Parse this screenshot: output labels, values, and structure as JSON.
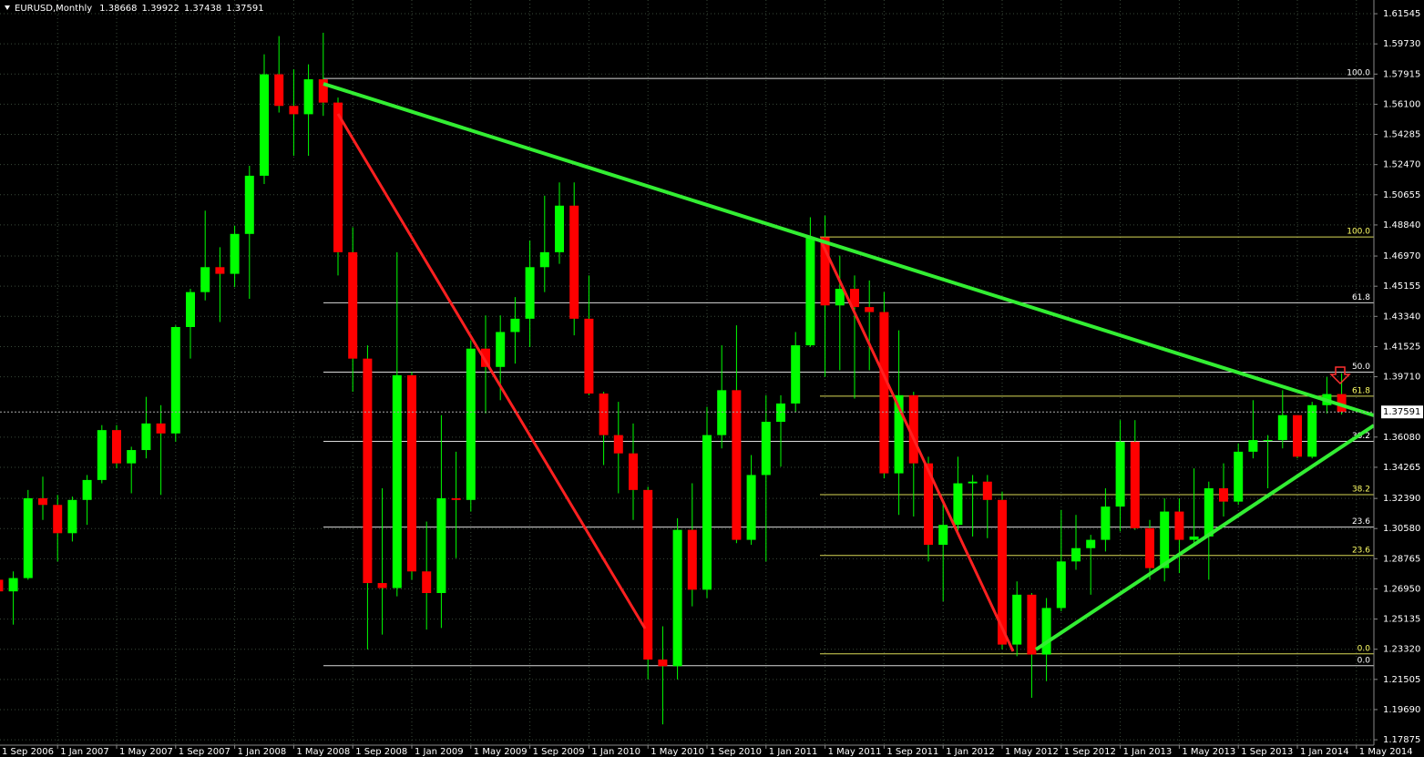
{
  "chart_data": {
    "type": "candlestick",
    "title": "EURUSD,Monthly",
    "categories": [
      "1 Sep 2006",
      null,
      null,
      null,
      "1 Jan 2007",
      null,
      null,
      null,
      "1 May 2007",
      null,
      null,
      null,
      "1 Sep 2007",
      null,
      null,
      null,
      "1 Jan 2008",
      null,
      null,
      null,
      "1 May 2008",
      null,
      null,
      null,
      "1 Sep 2008",
      null,
      null,
      null,
      "1 Jan 2009",
      null,
      null,
      null,
      "1 May 2009",
      null,
      null,
      null,
      "1 Sep 2009",
      null,
      null,
      null,
      "1 Jan 2010",
      null,
      null,
      null,
      "1 May 2010",
      null,
      null,
      null,
      "1 Sep 2010",
      null,
      null,
      null,
      "1 Jan 2011",
      null,
      null,
      null,
      "1 May 2011",
      null,
      null,
      null,
      "1 Sep 2011",
      null,
      null,
      null,
      "1 Jan 2012",
      null,
      null,
      null,
      "1 May 2012",
      null,
      null,
      null,
      "1 Sep 2012",
      null,
      null,
      null,
      "1 Jan 2013",
      null,
      null,
      null,
      "1 May 2013",
      null,
      null,
      null,
      "1 Sep 2013",
      null,
      null,
      null,
      "1 Jan 2014",
      null,
      null,
      null,
      "1 May 2014"
    ],
    "open": [
      1.275,
      1.268,
      1.276,
      1.324,
      1.32,
      1.303,
      1.323,
      1.335,
      1.365,
      1.345,
      1.353,
      1.369,
      1.363,
      1.427,
      1.448,
      1.463,
      1.459,
      1.483,
      1.518,
      1.579,
      1.56,
      1.555,
      1.576,
      1.562,
      1.472,
      1.408,
      1.273,
      1.27,
      1.398,
      1.28,
      1.267,
      1.324,
      1.323,
      1.414,
      1.403,
      1.424,
      1.432,
      1.463,
      1.472,
      1.5,
      1.432,
      1.387,
      1.362,
      1.351,
      1.329,
      1.227,
      1.223,
      1.305,
      1.269,
      1.362,
      1.389,
      1.299,
      1.338,
      1.37,
      1.381,
      1.416,
      1.481,
      1.44,
      1.45,
      1.439,
      1.436,
      1.339,
      1.386,
      1.345,
      1.296,
      1.308,
      1.333,
      1.334,
      1.323,
      1.236,
      1.266,
      1.23,
      1.258,
      1.286,
      1.294,
      1.299,
      1.319,
      1.358,
      1.306,
      1.282,
      1.316,
      1.299,
      1.301,
      1.33,
      1.322,
      1.352,
      1.359,
      1.359,
      1.374,
      1.349,
      1.38,
      1.38668,
      null
    ],
    "high": [
      1.284,
      1.28,
      1.329,
      1.337,
      1.326,
      1.325,
      1.338,
      1.368,
      1.368,
      1.355,
      1.385,
      1.38,
      1.428,
      1.45,
      1.497,
      1.475,
      1.488,
      1.524,
      1.591,
      1.602,
      1.582,
      1.585,
      1.604,
      1.565,
      1.487,
      1.416,
      1.33,
      1.472,
      1.4,
      1.31,
      1.374,
      1.352,
      1.419,
      1.434,
      1.434,
      1.445,
      1.479,
      1.506,
      1.514,
      1.514,
      1.458,
      1.388,
      1.382,
      1.369,
      1.331,
      1.247,
      1.312,
      1.333,
      1.379,
      1.416,
      1.428,
      1.35,
      1.386,
      1.386,
      1.424,
      1.493,
      1.494,
      1.47,
      1.458,
      1.455,
      1.448,
      1.425,
      1.388,
      1.349,
      1.323,
      1.349,
      1.338,
      1.338,
      1.328,
      1.274,
      1.267,
      1.264,
      1.317,
      1.314,
      1.302,
      1.33,
      1.371,
      1.371,
      1.311,
      1.324,
      1.324,
      1.342,
      1.334,
      1.345,
      1.357,
      1.383,
      1.362,
      1.389,
      1.374,
      1.382,
      1.397,
      1.39922,
      null
    ],
    "low": [
      1.262,
      1.248,
      1.275,
      1.311,
      1.286,
      1.298,
      1.308,
      1.333,
      1.342,
      1.327,
      1.348,
      1.326,
      1.358,
      1.408,
      1.443,
      1.43,
      1.451,
      1.444,
      1.513,
      1.556,
      1.53,
      1.53,
      1.554,
      1.458,
      1.388,
      1.233,
      1.242,
      1.265,
      1.275,
      1.245,
      1.246,
      1.288,
      1.316,
      1.375,
      1.383,
      1.405,
      1.415,
      1.448,
      1.465,
      1.422,
      1.386,
      1.344,
      1.327,
      1.311,
      1.215,
      1.188,
      1.215,
      1.259,
      1.264,
      1.354,
      1.297,
      1.296,
      1.286,
      1.343,
      1.376,
      1.415,
      1.397,
      1.401,
      1.384,
      1.401,
      1.336,
      1.314,
      1.313,
      1.286,
      1.262,
      1.303,
      1.301,
      1.3,
      1.233,
      1.229,
      1.204,
      1.214,
      1.256,
      1.281,
      1.266,
      1.292,
      1.304,
      1.305,
      1.275,
      1.274,
      1.279,
      1.295,
      1.275,
      1.313,
      1.32,
      1.348,
      1.33,
      1.354,
      1.348,
      1.348,
      1.375,
      1.37438,
      null
    ],
    "close": [
      1.268,
      1.276,
      1.324,
      1.32,
      1.303,
      1.323,
      1.335,
      1.365,
      1.345,
      1.353,
      1.369,
      1.363,
      1.427,
      1.448,
      1.463,
      1.459,
      1.483,
      1.518,
      1.579,
      1.56,
      1.555,
      1.576,
      1.562,
      1.472,
      1.408,
      1.273,
      1.27,
      1.398,
      1.28,
      1.267,
      1.324,
      1.323,
      1.414,
      1.403,
      1.424,
      1.432,
      1.463,
      1.472,
      1.5,
      1.432,
      1.387,
      1.362,
      1.351,
      1.329,
      1.227,
      1.223,
      1.305,
      1.269,
      1.362,
      1.389,
      1.299,
      1.338,
      1.37,
      1.381,
      1.416,
      1.481,
      1.44,
      1.45,
      1.439,
      1.436,
      1.339,
      1.386,
      1.345,
      1.296,
      1.308,
      1.333,
      1.334,
      1.323,
      1.236,
      1.266,
      1.23,
      1.258,
      1.286,
      1.294,
      1.299,
      1.319,
      1.358,
      1.306,
      1.282,
      1.316,
      1.299,
      1.301,
      1.33,
      1.322,
      1.352,
      1.359,
      1.359,
      1.374,
      1.349,
      1.38,
      1.3867,
      1.37591,
      null
    ],
    "ylim": [
      1.1755,
      1.6237
    ],
    "yticks": [
      1.61545,
      {
        "value": 1.5973,
        "label": "1.59730"
      },
      1.57915,
      {
        "value": 1.561,
        "label": "1.56100"
      },
      1.54285,
      {
        "value": 1.5247,
        "label": "1.52470"
      },
      1.50655,
      {
        "value": 1.4884,
        "label": "1.48840"
      },
      {
        "value": 1.4697,
        "label": "1.46970"
      },
      1.45155,
      {
        "value": 1.4334,
        "label": "1.43340"
      },
      1.41525,
      {
        "value": 1.3971,
        "label": "1.39710"
      },
      {
        "value": 1.3608,
        "label": "1.36080"
      },
      1.34265,
      {
        "value": 1.3239,
        "label": "1.32390"
      },
      {
        "value": 1.3058,
        "label": "1.30580"
      },
      1.28765,
      {
        "value": 1.2695,
        "label": "1.26950"
      },
      1.25135,
      {
        "value": 1.2332,
        "label": "1.23320"
      },
      1.21505,
      {
        "value": 1.1969,
        "label": "1.19690"
      },
      1.17875
    ],
    "grid": true,
    "bull_color": "#00ff00",
    "bear_color": "#ff0000",
    "wick_color": "#00ff00",
    "fibonacci": [
      {
        "high": 1.5765,
        "low": 1.2233,
        "color": "#ffffff",
        "levels": [
          {
            "value": 100,
            "label": "100.0"
          },
          61.8,
          {
            "value": 50,
            "label": "50.0"
          },
          38.2,
          23.6,
          {
            "value": 0,
            "label": "0.0"
          }
        ]
      },
      {
        "high": 1.4812,
        "low": 1.2304,
        "color": "#ffff66",
        "levels": [
          {
            "value": 100,
            "label": "100.0"
          },
          61.8,
          38.2,
          23.6,
          {
            "value": 0,
            "label": "0.0"
          }
        ]
      }
    ]
  }
}
